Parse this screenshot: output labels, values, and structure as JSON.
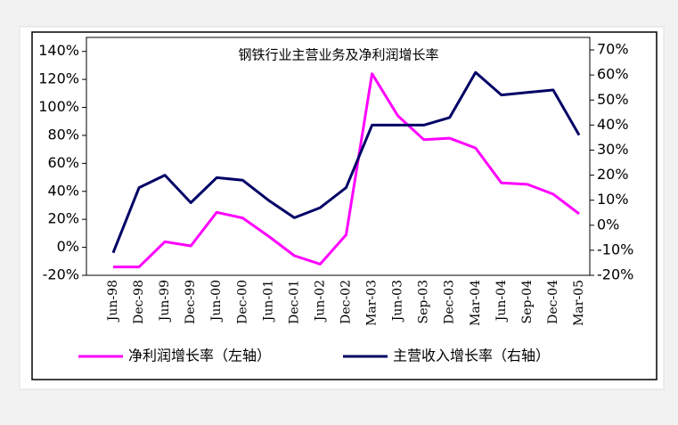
{
  "chart_data": {
    "type": "line",
    "title": "钢铁行业主营业务及净利润增长率",
    "categories": [
      "Jun-98",
      "Dec-98",
      "Jun-99",
      "Dec-99",
      "Jun-00",
      "Dec-00",
      "Jun-01",
      "Dec-01",
      "Jun-02",
      "Dec-02",
      "Mar-03",
      "Jun-03",
      "Sep-03",
      "Dec-03",
      "Mar-04",
      "Jun-04",
      "Sep-04",
      "Dec-04",
      "Mar-05"
    ],
    "series": [
      {
        "name": "净利润增长率（左轴）",
        "color": "#ff00ff",
        "axis": "y",
        "values": [
          -14,
          -14,
          4,
          1,
          25,
          21,
          8,
          -6,
          -12,
          9,
          124,
          94,
          77,
          78,
          71,
          46,
          45,
          38,
          24
        ]
      },
      {
        "name": "主营收入增长率（右轴）",
        "color": "#000066",
        "axis": "y2",
        "values": [
          -11,
          15,
          20,
          9,
          19,
          18,
          10,
          3,
          7,
          15,
          40,
          40,
          40,
          43,
          61,
          52,
          53,
          54,
          36
        ]
      }
    ],
    "ylim": [
      -20,
      150
    ],
    "yticks": [
      {
        "value": -20,
        "label": "-20%"
      },
      {
        "value": 0,
        "label": "0%"
      },
      {
        "value": 20,
        "label": "20%"
      },
      {
        "value": 40,
        "label": "40%"
      },
      {
        "value": 60,
        "label": "60%"
      },
      {
        "value": 80,
        "label": "80%"
      },
      {
        "value": 100,
        "label": "100%"
      },
      {
        "value": 120,
        "label": "120%"
      },
      {
        "value": 140,
        "label": "140%"
      }
    ],
    "y2lim": [
      -20,
      75
    ],
    "y2ticks": [
      {
        "value": -20,
        "label": "-20%"
      },
      {
        "value": -10,
        "label": "-10%"
      },
      {
        "value": 0,
        "label": "0%"
      },
      {
        "value": 10,
        "label": "10%"
      },
      {
        "value": 20,
        "label": "20%"
      },
      {
        "value": 30,
        "label": "30%"
      },
      {
        "value": 40,
        "label": "40%"
      },
      {
        "value": 50,
        "label": "50%"
      },
      {
        "value": 60,
        "label": "60%"
      },
      {
        "value": 70,
        "label": "70%"
      }
    ],
    "grid": false
  }
}
